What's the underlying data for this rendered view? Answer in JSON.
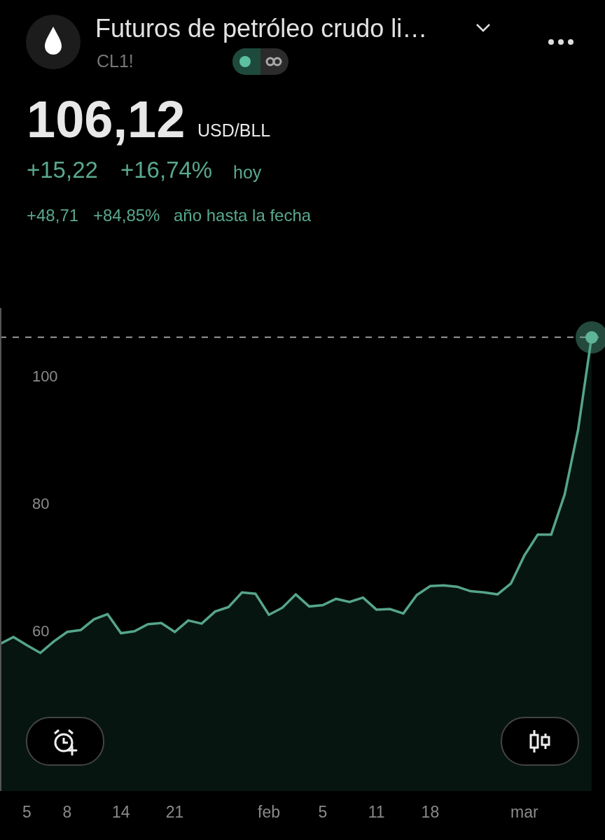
{
  "chart_data": {
    "type": "area",
    "title": "Futuros de petróleo crudo li…",
    "subtitle": "CL1!",
    "annotations": [
      "106,12",
      "USD/BLL",
      "+15,22",
      "+16,74%",
      "hoy",
      "+48,71",
      "+84,85%",
      "año hasta la fecha"
    ],
    "categories": [
      null,
      null,
      "5",
      null,
      null,
      "8",
      null,
      null,
      null,
      "14",
      null,
      null,
      null,
      "21",
      null,
      null,
      null,
      null,
      null,
      null,
      "feb",
      null,
      null,
      null,
      "5",
      null,
      null,
      null,
      "11",
      null,
      null,
      null,
      "18",
      null,
      null,
      null,
      null,
      null,
      null,
      "mar",
      null,
      null,
      null,
      null,
      null
    ],
    "series": [
      {
        "color": "#56a58b",
        "values": [
          57.9,
          59.0,
          57.7,
          56.5,
          58.3,
          59.8,
          60.1,
          61.8,
          62.6,
          59.6,
          59.9,
          61.0,
          61.2,
          59.8,
          61.6,
          61.1,
          63.0,
          63.7,
          66.0,
          65.8,
          62.5,
          63.6,
          65.7,
          63.8,
          64.0,
          65.0,
          64.5,
          65.2,
          63.3,
          63.4,
          62.7,
          65.6,
          67.0,
          67.1,
          66.9,
          66.2,
          66.0,
          65.7,
          67.4,
          71.8,
          75.1,
          75.1,
          81.4,
          91.6,
          106.1
        ]
      }
    ],
    "ylim": [
      34.8,
      110.7
    ],
    "yticks": [
      60,
      80,
      100
    ],
    "ref_lines": [
      {
        "axis": "y",
        "value": 106.1,
        "color": "#9a9a9a",
        "line_style": "dashed"
      }
    ],
    "grid": false,
    "legend": false
  }
}
